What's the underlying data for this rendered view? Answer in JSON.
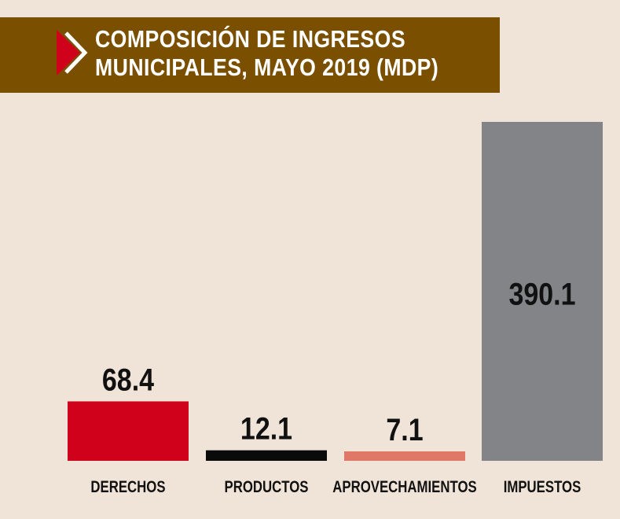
{
  "title": {
    "line1": "COMPOSICIÓN DE INGRESOS",
    "line2": "MUNICIPALES, MAYO 2019 (MDP)"
  },
  "colors": {
    "background": "#f0e4d8",
    "banner": "#7a5000",
    "arrow": "#d0021b"
  },
  "chart_data": {
    "type": "bar",
    "title": "COMPOSICIÓN DE INGRESOS MUNICIPALES, MAYO 2019 (MDP)",
    "categories": [
      "DERECHOS",
      "PRODUCTOS",
      "APROVECHAMIENTOS",
      "IMPUESTOS"
    ],
    "values": [
      68.4,
      12.1,
      7.1,
      390.1
    ],
    "value_labels": [
      "68.4",
      "12.1",
      "7.1",
      "390.1"
    ],
    "colors": [
      "#d0021b",
      "#0a0a0a",
      "#e07868",
      "#838487"
    ],
    "xlabel": "",
    "ylabel": "",
    "ylim": [
      0,
      390.1
    ],
    "grid": false,
    "legend": "none"
  }
}
